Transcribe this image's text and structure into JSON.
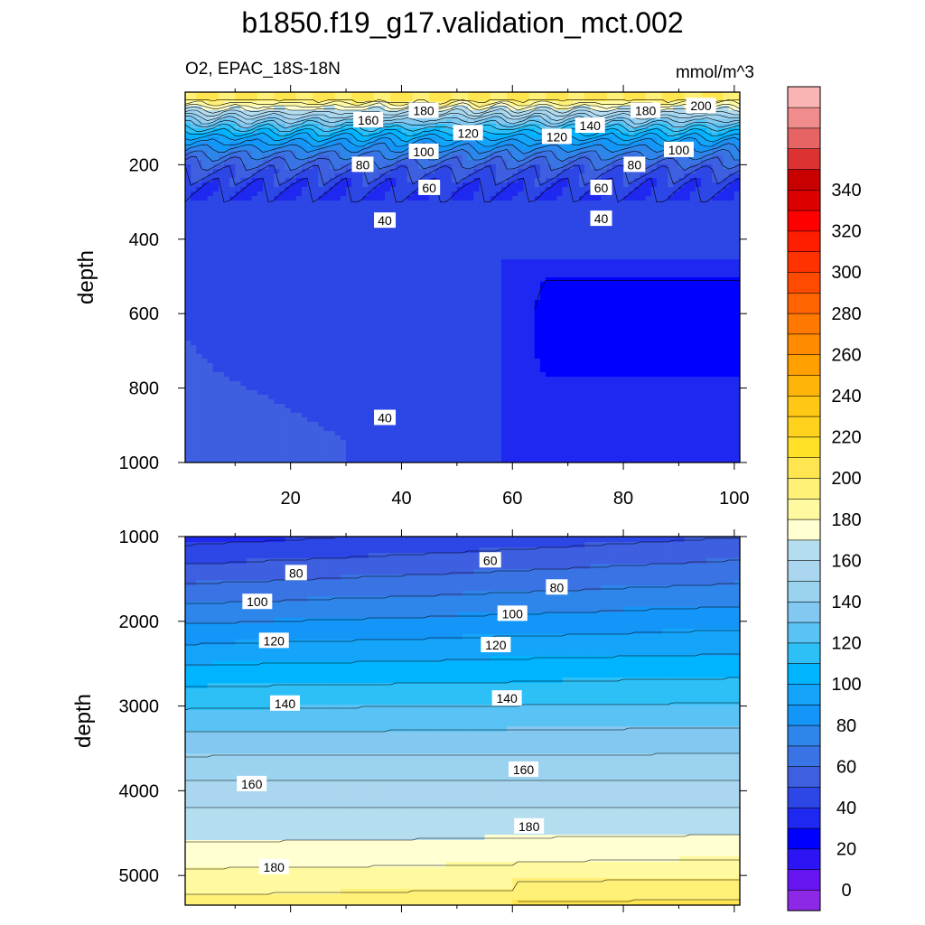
{
  "figure": {
    "title": "b1850.f19_g17.validation_mct.002",
    "left_string": "O2, EPAC_18S-18N",
    "right_string": "mmol/m^3",
    "ylabel": "depth"
  },
  "colorbar": {
    "tick_labels": [
      "0",
      "20",
      "40",
      "60",
      "80",
      "100",
      "120",
      "140",
      "160",
      "180",
      "200",
      "220",
      "240",
      "260",
      "280",
      "300",
      "320",
      "340"
    ],
    "colors": [
      "#8C28E6",
      "#6614F0",
      "#2D14F5",
      "#0000FF",
      "#1E28F0",
      "#2D46E6",
      "#3D5FE0",
      "#3A74E4",
      "#2E86EA",
      "#1496F8",
      "#14A5FA",
      "#00B4FF",
      "#2DC0F7",
      "#5AC3F5",
      "#82C8F0",
      "#9BD2F0",
      "#AAD7EF",
      "#B4DEF0",
      "#FFFFD2",
      "#FFFAA0",
      "#FFF078",
      "#FFE650",
      "#FFE128",
      "#FFD21E",
      "#FFC814",
      "#FFB40A",
      "#FFA000",
      "#FF8C00",
      "#FF7800",
      "#FF6400",
      "#FF4B00",
      "#FF3200",
      "#FF1E00",
      "#FF0000",
      "#DC0000",
      "#C80000",
      "#DC3232",
      "#E66464",
      "#F08C8C",
      "#FAB4B4"
    ]
  },
  "chart_data": [
    {
      "type": "contour",
      "panel": "upper",
      "xlabel": "",
      "ylabel": "depth",
      "xlim": [
        1,
        101
      ],
      "ylim": [
        1000,
        5
      ],
      "x_ticks": [
        "20",
        "40",
        "60",
        "80",
        "100"
      ],
      "y_ticks": [
        "200",
        "400",
        "600",
        "800",
        "1000"
      ],
      "contour_labels": [
        {
          "value": "180",
          "x": 44,
          "y": 55
        },
        {
          "value": "160",
          "x": 34,
          "y": 80
        },
        {
          "value": "200",
          "x": 94,
          "y": 42
        },
        {
          "value": "180",
          "x": 84,
          "y": 55
        },
        {
          "value": "140",
          "x": 74,
          "y": 95
        },
        {
          "value": "120",
          "x": 52,
          "y": 115
        },
        {
          "value": "120",
          "x": 68,
          "y": 125
        },
        {
          "value": "100",
          "x": 44,
          "y": 165
        },
        {
          "value": "100",
          "x": 90,
          "y": 160
        },
        {
          "value": "80",
          "x": 33,
          "y": 200
        },
        {
          "value": "80",
          "x": 82,
          "y": 200
        },
        {
          "value": "60",
          "x": 45,
          "y": 262
        },
        {
          "value": "60",
          "x": 76,
          "y": 262
        },
        {
          "value": "40",
          "x": 37,
          "y": 350
        },
        {
          "value": "40",
          "x": 76,
          "y": 345
        },
        {
          "value": "40",
          "x": 37,
          "y": 880
        }
      ]
    },
    {
      "type": "contour",
      "panel": "lower",
      "xlabel": "",
      "ylabel": "depth",
      "xlim": [
        1,
        101
      ],
      "ylim": [
        5350,
        1000
      ],
      "x_ticks": [],
      "y_ticks": [
        "1000",
        "2000",
        "3000",
        "4000",
        "5000"
      ],
      "contour_labels": [
        {
          "value": "60",
          "x": 56,
          "y": 1280
        },
        {
          "value": "80",
          "x": 21,
          "y": 1430
        },
        {
          "value": "80",
          "x": 68,
          "y": 1600
        },
        {
          "value": "100",
          "x": 14,
          "y": 1770
        },
        {
          "value": "100",
          "x": 60,
          "y": 1910
        },
        {
          "value": "120",
          "x": 17,
          "y": 2230
        },
        {
          "value": "120",
          "x": 57,
          "y": 2280
        },
        {
          "value": "140",
          "x": 19,
          "y": 2970
        },
        {
          "value": "140",
          "x": 59,
          "y": 2910
        },
        {
          "value": "160",
          "x": 13,
          "y": 3920
        },
        {
          "value": "160",
          "x": 62,
          "y": 3750
        },
        {
          "value": "180",
          "x": 17,
          "y": 4900
        },
        {
          "value": "180",
          "x": 63,
          "y": 4420
        }
      ]
    }
  ]
}
